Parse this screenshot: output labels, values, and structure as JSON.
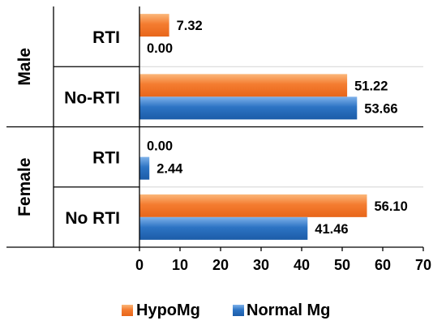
{
  "chart_data": {
    "type": "bar",
    "orientation": "horizontal",
    "groups": [
      {
        "label": "Male",
        "categories": [
          {
            "label": "RTI"
          },
          {
            "label": "No-RTI"
          }
        ]
      },
      {
        "label": "Female",
        "categories": [
          {
            "label": "RTI"
          },
          {
            "label": "No RTI"
          }
        ]
      }
    ],
    "series": [
      {
        "name": "HypoMg",
        "color": "#f47c30",
        "values": [
          7.32,
          51.22,
          0.0,
          56.1
        ],
        "labels": [
          "7.32",
          "51.22",
          "0.00",
          "56.10"
        ]
      },
      {
        "name": "Normal Mg",
        "color": "#2d74c4",
        "values": [
          0.0,
          53.66,
          2.44,
          41.46
        ],
        "labels": [
          "0.00",
          "53.66",
          "2.44",
          "41.46"
        ]
      }
    ],
    "xlim": [
      0,
      70
    ],
    "xticks": [
      "0",
      "10",
      "20",
      "30",
      "40",
      "50",
      "60",
      "70"
    ],
    "grid": "horizontal separators",
    "legend_position": "bottom"
  }
}
